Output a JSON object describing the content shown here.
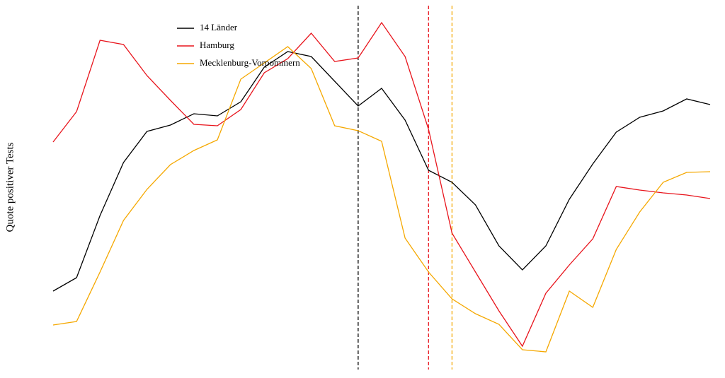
{
  "chart_data": {
    "type": "line",
    "ylabel": "Quote positiver Tests",
    "x": [
      0,
      1,
      2,
      3,
      4,
      5,
      6,
      7,
      8,
      9,
      10,
      11,
      12,
      13,
      14,
      15,
      16,
      17,
      18,
      19,
      20,
      21,
      22,
      23,
      24,
      25,
      26,
      27,
      28
    ],
    "xlim": [
      0,
      28
    ],
    "ylim": [
      0,
      102
    ],
    "legend": "upper left",
    "series": [
      {
        "name": "14 Länder",
        "color": "#000000",
        "values": [
          21.6,
          25.4,
          43,
          58,
          66.8,
          68.6,
          71.8,
          71.2,
          75.2,
          85,
          89.4,
          88,
          81,
          74,
          79,
          70,
          55.8,
          52.4,
          46,
          34.4,
          27.6,
          34.4,
          47.6,
          57.6,
          66.6,
          70.8,
          72.6,
          76,
          74.4
        ]
      },
      {
        "name": "Hamburg",
        "color": "#e8141c",
        "values": [
          63.8,
          72.4,
          92.6,
          91.4,
          82.6,
          75.6,
          68.8,
          68.4,
          73,
          83.4,
          87.4,
          94.6,
          86.6,
          87.6,
          97.6,
          88,
          67.4,
          38,
          27,
          16,
          6,
          21,
          29,
          36.4,
          51.2,
          50.2,
          49.4,
          48.8,
          47.8
        ]
      },
      {
        "name": "Mecklenburg-Vorpommern",
        "color": "#f5a800",
        "values": [
          12,
          13,
          27,
          41.6,
          50.4,
          57.4,
          61.4,
          64.4,
          81.6,
          86.2,
          90.8,
          84.6,
          68.4,
          67,
          64,
          36.6,
          27,
          19.4,
          15.2,
          12.2,
          5,
          4.4,
          21.6,
          17,
          33.4,
          44,
          52.4,
          55.2,
          55.4
        ]
      }
    ],
    "vlines": [
      {
        "x": 13,
        "color": "#000000"
      },
      {
        "x": 16,
        "color": "#e8141c"
      },
      {
        "x": 17,
        "color": "#f5a800"
      }
    ]
  }
}
